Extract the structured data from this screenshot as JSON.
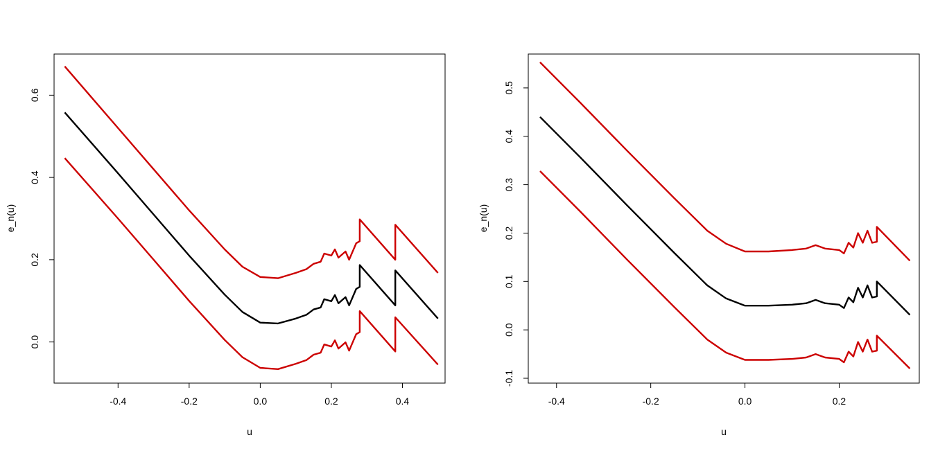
{
  "chart_data": [
    {
      "type": "line",
      "xlabel": "u",
      "ylabel": "e_n(u)",
      "xlim": [
        -0.58,
        0.52
      ],
      "ylim": [
        -0.1,
        0.7
      ],
      "xticks": [
        -0.4,
        -0.2,
        0.0,
        0.2,
        0.4
      ],
      "xtick_labels": [
        "-0.4",
        "-0.2",
        "0.0",
        "0.2",
        "0.4"
      ],
      "yticks": [
        0.0,
        0.2,
        0.4,
        0.6
      ],
      "ytick_labels": [
        "0.0",
        "0.2",
        "0.4",
        "0.6"
      ],
      "grid": false,
      "legend": "none",
      "series": [
        {
          "color": "#cc0000",
          "points": [
            [
              -0.55,
              0.67
            ],
            [
              -0.4,
              0.52
            ],
            [
              -0.3,
              0.42
            ],
            [
              -0.2,
              0.32
            ],
            [
              -0.1,
              0.225
            ],
            [
              -0.05,
              0.183
            ],
            [
              0.0,
              0.158
            ],
            [
              0.05,
              0.155
            ],
            [
              0.1,
              0.168
            ],
            [
              0.13,
              0.177
            ],
            [
              0.15,
              0.19
            ],
            [
              0.17,
              0.195
            ],
            [
              0.18,
              0.215
            ],
            [
              0.2,
              0.21
            ],
            [
              0.21,
              0.225
            ],
            [
              0.22,
              0.205
            ],
            [
              0.24,
              0.22
            ],
            [
              0.25,
              0.2
            ],
            [
              0.27,
              0.24
            ],
            [
              0.28,
              0.245
            ],
            [
              0.28,
              0.298
            ],
            [
              0.38,
              0.2
            ],
            [
              0.38,
              0.285
            ],
            [
              0.5,
              0.168
            ]
          ]
        },
        {
          "color": "#000000",
          "points": [
            [
              -0.55,
              0.558
            ],
            [
              -0.4,
              0.41
            ],
            [
              -0.3,
              0.31
            ],
            [
              -0.2,
              0.21
            ],
            [
              -0.1,
              0.115
            ],
            [
              -0.05,
              0.073
            ],
            [
              0.0,
              0.047
            ],
            [
              0.05,
              0.045
            ],
            [
              0.1,
              0.057
            ],
            [
              0.13,
              0.066
            ],
            [
              0.15,
              0.079
            ],
            [
              0.17,
              0.084
            ],
            [
              0.18,
              0.104
            ],
            [
              0.2,
              0.099
            ],
            [
              0.21,
              0.114
            ],
            [
              0.22,
              0.094
            ],
            [
              0.24,
              0.109
            ],
            [
              0.25,
              0.089
            ],
            [
              0.27,
              0.129
            ],
            [
              0.28,
              0.134
            ],
            [
              0.28,
              0.187
            ],
            [
              0.38,
              0.089
            ],
            [
              0.38,
              0.174
            ],
            [
              0.5,
              0.057
            ]
          ]
        },
        {
          "color": "#cc0000",
          "points": [
            [
              -0.55,
              0.447
            ],
            [
              -0.4,
              0.3
            ],
            [
              -0.3,
              0.2
            ],
            [
              -0.2,
              0.1
            ],
            [
              -0.1,
              0.005
            ],
            [
              -0.05,
              -0.037
            ],
            [
              0.0,
              -0.063
            ],
            [
              0.05,
              -0.066
            ],
            [
              0.1,
              -0.053
            ],
            [
              0.13,
              -0.044
            ],
            [
              0.15,
              -0.031
            ],
            [
              0.17,
              -0.026
            ],
            [
              0.18,
              -0.006
            ],
            [
              0.2,
              -0.011
            ],
            [
              0.21,
              0.004
            ],
            [
              0.22,
              -0.016
            ],
            [
              0.24,
              -0.001
            ],
            [
              0.25,
              -0.021
            ],
            [
              0.27,
              0.019
            ],
            [
              0.28,
              0.024
            ],
            [
              0.28,
              0.075
            ],
            [
              0.38,
              -0.023
            ],
            [
              0.38,
              0.06
            ],
            [
              0.5,
              -0.055
            ]
          ]
        }
      ]
    },
    {
      "type": "line",
      "xlabel": "u",
      "ylabel": "e_n(u)",
      "xlim": [
        -0.46,
        0.37
      ],
      "ylim": [
        -0.11,
        0.57
      ],
      "xticks": [
        -0.4,
        -0.2,
        0.0,
        0.2
      ],
      "xtick_labels": [
        "-0.4",
        "-0.2",
        "0.0",
        "0.2"
      ],
      "yticks": [
        -0.1,
        0.0,
        0.1,
        0.2,
        0.3,
        0.4,
        0.5
      ],
      "ytick_labels": [
        "-0.1",
        "0.0",
        "0.1",
        "0.2",
        "0.3",
        "0.4",
        "0.5"
      ],
      "grid": false,
      "legend": "none",
      "series": [
        {
          "color": "#cc0000",
          "points": [
            [
              -0.435,
              0.553
            ],
            [
              -0.35,
              0.47
            ],
            [
              -0.25,
              0.37
            ],
            [
              -0.15,
              0.272
            ],
            [
              -0.08,
              0.205
            ],
            [
              -0.04,
              0.178
            ],
            [
              0.0,
              0.162
            ],
            [
              0.05,
              0.162
            ],
            [
              0.1,
              0.165
            ],
            [
              0.13,
              0.168
            ],
            [
              0.15,
              0.175
            ],
            [
              0.17,
              0.168
            ],
            [
              0.2,
              0.165
            ],
            [
              0.21,
              0.158
            ],
            [
              0.22,
              0.18
            ],
            [
              0.23,
              0.17
            ],
            [
              0.24,
              0.2
            ],
            [
              0.25,
              0.18
            ],
            [
              0.26,
              0.205
            ],
            [
              0.27,
              0.18
            ],
            [
              0.28,
              0.182
            ],
            [
              0.28,
              0.213
            ],
            [
              0.35,
              0.143
            ]
          ]
        },
        {
          "color": "#000000",
          "points": [
            [
              -0.435,
              0.44
            ],
            [
              -0.35,
              0.357
            ],
            [
              -0.25,
              0.257
            ],
            [
              -0.15,
              0.159
            ],
            [
              -0.08,
              0.092
            ],
            [
              -0.04,
              0.065
            ],
            [
              0.0,
              0.05
            ],
            [
              0.05,
              0.05
            ],
            [
              0.1,
              0.052
            ],
            [
              0.13,
              0.055
            ],
            [
              0.15,
              0.062
            ],
            [
              0.17,
              0.055
            ],
            [
              0.2,
              0.052
            ],
            [
              0.21,
              0.045
            ],
            [
              0.22,
              0.067
            ],
            [
              0.23,
              0.057
            ],
            [
              0.24,
              0.087
            ],
            [
              0.25,
              0.067
            ],
            [
              0.26,
              0.092
            ],
            [
              0.27,
              0.067
            ],
            [
              0.28,
              0.069
            ],
            [
              0.28,
              0.1
            ],
            [
              0.35,
              0.031
            ]
          ]
        },
        {
          "color": "#cc0000",
          "points": [
            [
              -0.435,
              0.328
            ],
            [
              -0.35,
              0.245
            ],
            [
              -0.25,
              0.145
            ],
            [
              -0.15,
              0.047
            ],
            [
              -0.08,
              -0.02
            ],
            [
              -0.04,
              -0.047
            ],
            [
              0.0,
              -0.062
            ],
            [
              0.05,
              -0.062
            ],
            [
              0.1,
              -0.06
            ],
            [
              0.13,
              -0.057
            ],
            [
              0.15,
              -0.05
            ],
            [
              0.17,
              -0.057
            ],
            [
              0.2,
              -0.06
            ],
            [
              0.21,
              -0.067
            ],
            [
              0.22,
              -0.045
            ],
            [
              0.23,
              -0.055
            ],
            [
              0.24,
              -0.025
            ],
            [
              0.25,
              -0.045
            ],
            [
              0.26,
              -0.02
            ],
            [
              0.27,
              -0.045
            ],
            [
              0.28,
              -0.043
            ],
            [
              0.28,
              -0.012
            ],
            [
              0.35,
              -0.08
            ]
          ]
        }
      ]
    }
  ]
}
